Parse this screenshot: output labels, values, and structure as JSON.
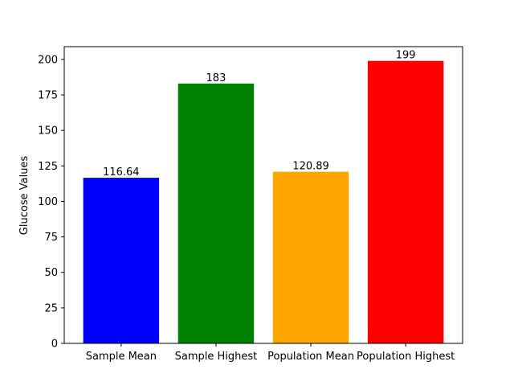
{
  "chart_data": {
    "type": "bar",
    "categories": [
      "Sample Mean",
      "Sample Highest",
      "Population Mean",
      "Population Highest"
    ],
    "values": [
      116.64,
      183,
      120.89,
      199
    ],
    "value_labels": [
      "116.64",
      "183",
      "120.89",
      "199"
    ],
    "colors": [
      "#0000ff",
      "#008000",
      "#ffa500",
      "#ff0000"
    ],
    "title": "",
    "xlabel": "",
    "ylabel": "Glucose Values",
    "ylim": [
      0,
      209
    ],
    "yticks": [
      0,
      25,
      50,
      75,
      100,
      125,
      150,
      175,
      200
    ],
    "grid": false,
    "legend": "none"
  }
}
